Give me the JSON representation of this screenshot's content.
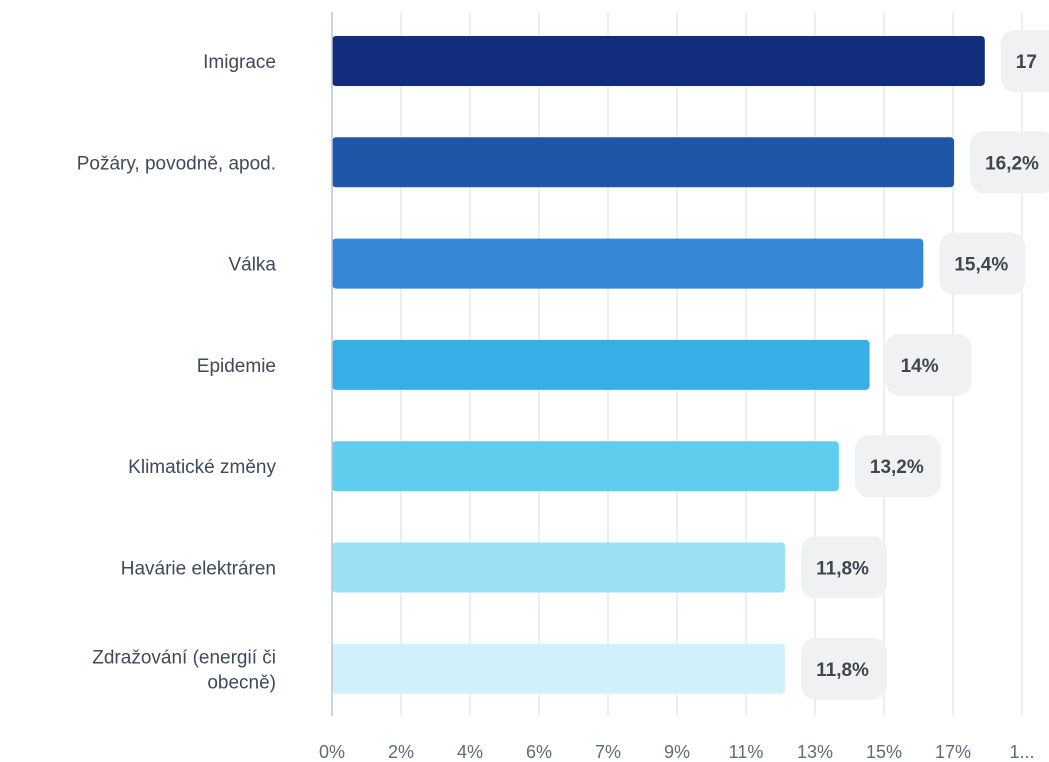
{
  "chart_data": {
    "type": "bar",
    "orientation": "horizontal",
    "categories": [
      [
        "Imigrace"
      ],
      [
        "Požáry, povodně, apod."
      ],
      [
        "Válka"
      ],
      [
        "Epidemie"
      ],
      [
        "Klimatické změny"
      ],
      [
        "Havárie elektráren"
      ],
      [
        "Zdražování (energií či",
        "obecně)"
      ]
    ],
    "values": [
      17.0,
      16.2,
      15.4,
      14.0,
      13.2,
      11.8,
      11.8
    ],
    "value_labels": [
      "17",
      "16,2%",
      "15,4%",
      "14%",
      "13,2%",
      "11,8%",
      "11,8%"
    ],
    "bar_colors": [
      "#132d7d",
      "#1f57a8",
      "#3687d5",
      "#38aee6",
      "#5fcdee",
      "#9be1f3",
      "#d0f1f9"
    ],
    "x_ticks": [
      "0%",
      "2%",
      "4%",
      "6%",
      "7%",
      "9%",
      "11%",
      "13%",
      "15%",
      "17%",
      "1..."
    ],
    "xlim": [
      0,
      19
    ],
    "grid": true,
    "colors": {
      "grid": "#e6e8ec",
      "axis": "#b9c3e3",
      "label_box": "#f0f1f2"
    }
  }
}
